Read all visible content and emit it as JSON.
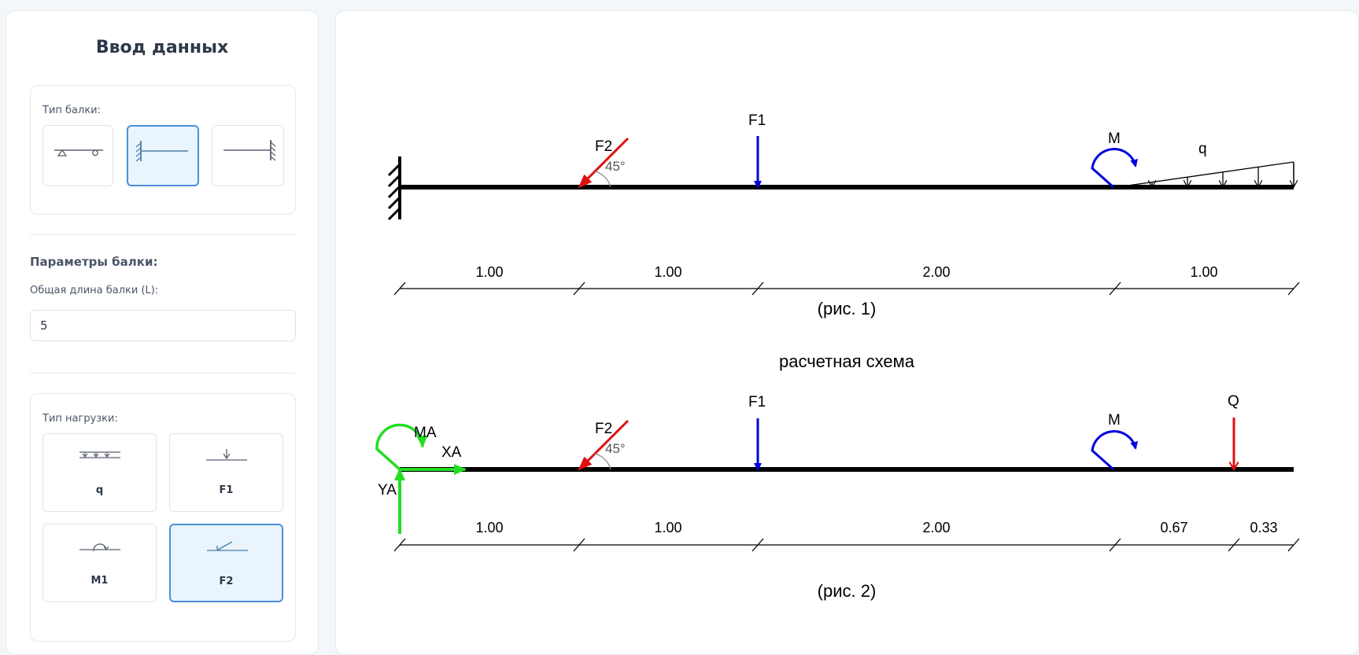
{
  "panel": {
    "title": "Ввод данных",
    "beam_type_label": "Тип балки:",
    "beam_types": [
      {
        "name": "simply-supported",
        "active": false
      },
      {
        "name": "cantilever-left",
        "active": true
      },
      {
        "name": "cantilever-right",
        "active": false
      }
    ],
    "params_heading": "Параметры балки:",
    "length_label": "Общая длина балки (L):",
    "length_value": "5",
    "load_type_label": "Тип нагрузки:",
    "load_types": [
      {
        "label": "q",
        "icon": "distributed-load-icon",
        "active": false
      },
      {
        "label": "F1",
        "icon": "point-force-icon",
        "active": false
      },
      {
        "label": "M1",
        "icon": "moment-icon",
        "active": false
      },
      {
        "label": "F2",
        "icon": "inclined-force-icon",
        "active": true
      }
    ]
  },
  "diagram1": {
    "caption": "(рис. 1)",
    "labels": {
      "f1": "F1",
      "f2": "F2",
      "angle": "45°",
      "moment": "M",
      "q": "q"
    },
    "dims": [
      "1.00",
      "1.00",
      "2.00",
      "1.00"
    ]
  },
  "diagram2": {
    "title": "расчетная схема",
    "caption": "(рис. 2)",
    "labels": {
      "f1": "F1",
      "f2": "F2",
      "angle": "45°",
      "moment": "M",
      "Q": "Q",
      "ma": "MA",
      "xa": "XA",
      "ya": "YA"
    },
    "dims": [
      "1.00",
      "1.00",
      "2.00",
      "0.67",
      "0.33"
    ]
  },
  "colors": {
    "accent": "#4a90d9",
    "active_bg": "#e9f4fd",
    "force_blue": "#0000dd",
    "force_red": "#e01010",
    "reaction_green": "#22dd22"
  }
}
